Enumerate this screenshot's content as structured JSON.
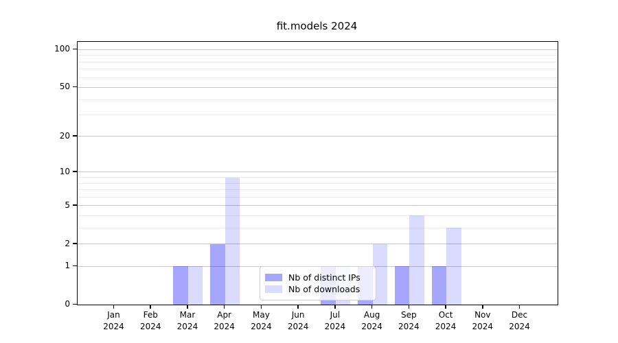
{
  "title": "fit.models 2024",
  "chart_data": {
    "type": "bar",
    "title": "fit.models 2024",
    "xlabel": "",
    "ylabel": "",
    "scale": "log1p",
    "grid": true,
    "legend_position": "lower center",
    "categories": [
      "Jan 2024",
      "Feb 2024",
      "Mar 2024",
      "Apr 2024",
      "May 2024",
      "Jun 2024",
      "Jul 2024",
      "Aug 2024",
      "Sep 2024",
      "Oct 2024",
      "Nov 2024",
      "Dec 2024"
    ],
    "series": [
      {
        "name": "Nb of distinct IPs",
        "color": "rgba(0,0,255,0.35)",
        "values": [
          0,
          0,
          1,
          2,
          0,
          0,
          1,
          1,
          1,
          1,
          0,
          0
        ]
      },
      {
        "name": "Nb of downloads",
        "color": "rgba(0,0,255,0.14)",
        "values": [
          0,
          0,
          1,
          9,
          0,
          0,
          1,
          2,
          4,
          3,
          0,
          0
        ]
      }
    ],
    "y_ticks": [
      0,
      1,
      2,
      5,
      10,
      20,
      50,
      100
    ],
    "y_minor_ticks": [
      3,
      4,
      6,
      7,
      8,
      9,
      30,
      40,
      60,
      70,
      80,
      90
    ],
    "ylim": [
      0,
      115
    ]
  },
  "colors": {
    "major_grid": "#c5c5c5",
    "minor_grid": "#ececec",
    "spine": "#000000"
  }
}
